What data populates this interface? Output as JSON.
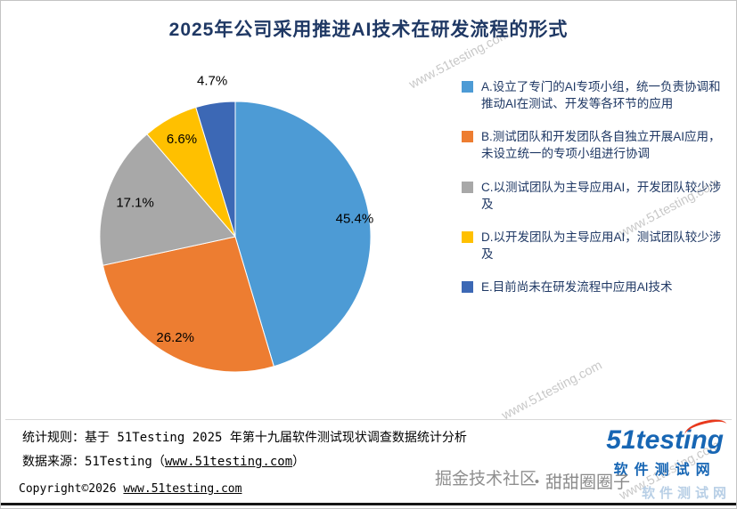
{
  "title": "2025年公司采用推进AI技术在研发流程的形式",
  "chart_data": {
    "type": "pie",
    "title": "2025年公司采用推进AI技术在研发流程的形式",
    "labels": [
      "A.设立了专门的AI专项小组，统一负责协调和推动AI在测试、开发等各环节的应用",
      "B.测试团队和开发团队各自独立开展AI应用，未设立统一的专项小组进行协调",
      "C.以测试团队为主导应用AI，开发团队较少涉及",
      "D.以开发团队为主导应用AI，测试团队较少涉及",
      "E.目前尚未在研发流程中应用AI技术"
    ],
    "values": [
      45.4,
      26.2,
      17.1,
      6.6,
      4.7
    ],
    "value_labels": [
      "45.4%",
      "26.2%",
      "17.1%",
      "6.6%",
      "4.7%"
    ],
    "colors": [
      "#4d9bd5",
      "#ed7d31",
      "#a8a8a8",
      "#ffc000",
      "#3c68b5"
    ],
    "start_angle_deg": -90,
    "direction": "clockwise",
    "legend_position": "right",
    "label_radii": [
      0.89,
      0.87,
      0.78,
      0.82,
      1.16
    ]
  },
  "footer": {
    "stat_rule": "统计规则：基于 51Testing 2025 年第十九届软件测试现状调查数据统计分析",
    "source_prefix": "数据来源：51Testing（",
    "source_link": "www.51testing.com",
    "source_suffix": "）",
    "copyright_prefix": "Copyright©2026 ",
    "copyright_link": "www.51testing.com"
  },
  "logo": {
    "brand": "51testing",
    "subtitle": "软件测试网"
  },
  "watermarks": {
    "diagonal": "www.51testing.com",
    "community1": "掘金技术社区",
    "community2": "・甜甜圈圈子",
    "brand_pale": "软件测试网"
  }
}
